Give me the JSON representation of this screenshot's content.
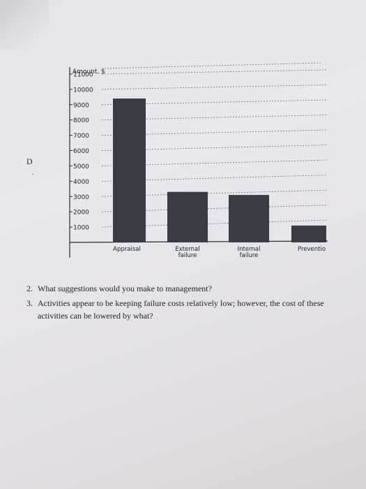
{
  "side_letter": "D",
  "questions": [
    {
      "number": "2.",
      "text": "What suggestions would you make to management?"
    },
    {
      "number": "3.",
      "text": "Activities appear to be keeping failure costs relatively low; however, the cost of these activities can be lowered by what?"
    }
  ],
  "chart_data": {
    "type": "bar",
    "title": "",
    "ylabel": "Amount, $",
    "xlabel": "",
    "ylim": [
      0,
      11000
    ],
    "y_ticks": [
      11000,
      10000,
      9000,
      8000,
      7000,
      6000,
      5000,
      4000,
      3000,
      2000,
      1000
    ],
    "grid": true,
    "categories": [
      "Appraisal",
      "External failure",
      "Internal failure",
      "Preventio"
    ],
    "category_lines": [
      [
        "Appraisal"
      ],
      [
        "External",
        "failure"
      ],
      [
        "Internal",
        "failure"
      ],
      [
        "Preventio"
      ]
    ],
    "values": [
      9400,
      3300,
      3100,
      1100
    ],
    "bar_color": "#3a3b40"
  }
}
